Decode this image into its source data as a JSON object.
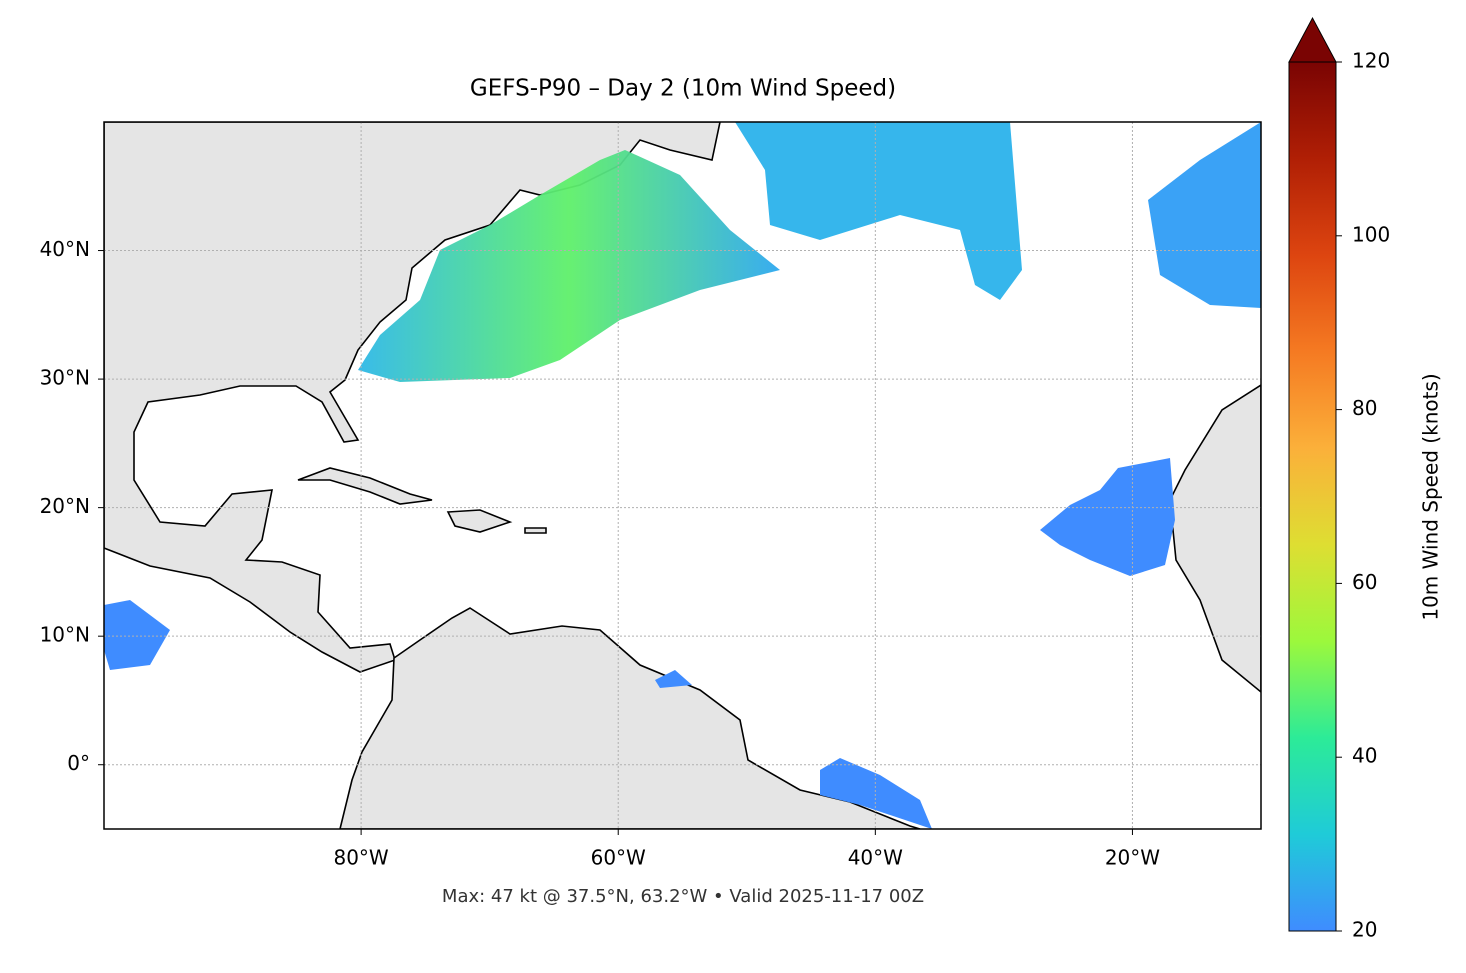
{
  "map": {
    "title": "GEFS-P90 – Day 2 (10m Wind Speed)",
    "footer": "Max: 47 kt @ 37.5°N, 63.2°W • Valid 2025-11-17 00Z",
    "xlim": [
      -100,
      -10
    ],
    "ylim": [
      -5,
      50
    ],
    "xticks": [
      {
        "value": -80,
        "label": "80°W"
      },
      {
        "value": -60,
        "label": "60°W"
      },
      {
        "value": -40,
        "label": "40°W"
      },
      {
        "value": -20,
        "label": "20°W"
      }
    ],
    "yticks": [
      {
        "value": 0,
        "label": "0°"
      },
      {
        "value": 10,
        "label": "10°N"
      },
      {
        "value": 20,
        "label": "20°N"
      },
      {
        "value": 30,
        "label": "30°N"
      },
      {
        "value": 40,
        "label": "40°N"
      }
    ],
    "grid": true,
    "colorbar": {
      "label": "10m Wind Speed (knots)",
      "lim": [
        20,
        120
      ],
      "ticks": [
        20,
        40,
        60,
        80,
        100,
        120
      ],
      "colors": [
        "#3f8cff",
        "#1fcbd8",
        "#2ceb98",
        "#9cf83c",
        "#dede32",
        "#fbb03a",
        "#f57a22",
        "#dd4510",
        "#b01f05",
        "#7a0403"
      ]
    }
  }
}
